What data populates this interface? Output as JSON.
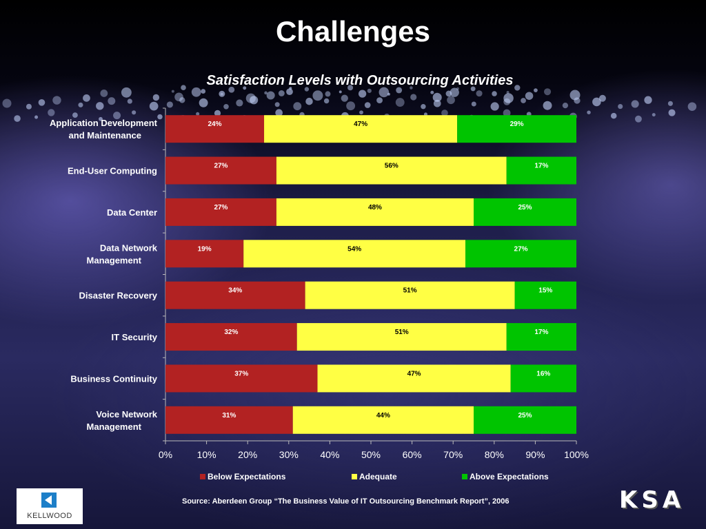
{
  "slide": {
    "title": "Challenges",
    "subtitle": "Satisfaction Levels with Outsourcing Activities",
    "source": "Source: Aberdeen Group “The Business Value of IT Outsourcing Benchmark Report”, 2006",
    "logo_left": "KELLWOOD",
    "logo_right": "KSA"
  },
  "colors": {
    "below": "#B22222",
    "adequate": "#FFFF44",
    "above": "#00C400"
  },
  "chart_data": {
    "type": "bar",
    "orientation": "horizontal",
    "stacked": "percent",
    "title": "Satisfaction Levels with Outsourcing Activities",
    "categories": [
      [
        "Application Development",
        "and Maintenance"
      ],
      [
        "End-User Computing"
      ],
      [
        "Data Center"
      ],
      [
        "Data Network",
        "Management"
      ],
      [
        "Disaster Recovery"
      ],
      [
        "IT Security"
      ],
      [
        "Business Continuity"
      ],
      [
        "Voice Network",
        "Management"
      ]
    ],
    "series": [
      {
        "name": "Below Expectations",
        "values": [
          24,
          27,
          27,
          19,
          34,
          32,
          37,
          31
        ]
      },
      {
        "name": "Adequate",
        "values": [
          47,
          56,
          48,
          54,
          51,
          51,
          47,
          44
        ]
      },
      {
        "name": "Above Expectations",
        "values": [
          29,
          17,
          25,
          27,
          15,
          17,
          16,
          25
        ]
      }
    ],
    "xticks": [
      "0%",
      "10%",
      "20%",
      "30%",
      "40%",
      "50%",
      "60%",
      "70%",
      "80%",
      "90%",
      "100%"
    ],
    "xlim": [
      0,
      100
    ],
    "legend": "bottom"
  }
}
